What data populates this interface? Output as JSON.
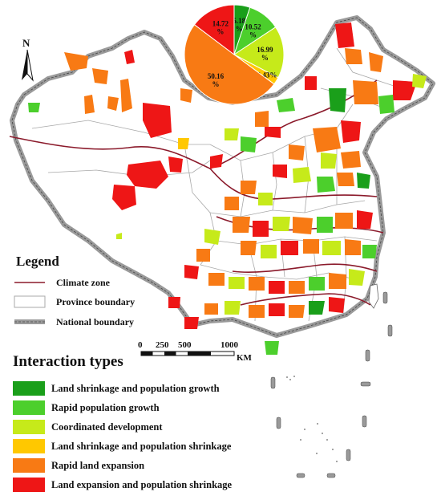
{
  "north_label": "N",
  "legend": {
    "title": "Legend",
    "items": [
      {
        "label": "Climate zone",
        "symbol": "dark-red-line"
      },
      {
        "label": "Province boundary",
        "symbol": "grey-outline-box"
      },
      {
        "label": "National boundary",
        "symbol": "double-grey-line"
      }
    ]
  },
  "scale_bar": {
    "ticks": [
      "0",
      "250",
      "500",
      "1000"
    ],
    "unit": "KM"
  },
  "interaction_types": {
    "title": "Interaction types",
    "items": [
      {
        "label": "Land shrinkage and population growth",
        "color": "#1a9f1a"
      },
      {
        "label": "Rapid population growth",
        "color": "#4ccf2c"
      },
      {
        "label": "Coordinated development",
        "color": "#c6ea1a"
      },
      {
        "label": "Land shrinkage and population shrinkage",
        "color": "#ffc800"
      },
      {
        "label": "Rapid land expansion",
        "color": "#f87a14"
      },
      {
        "label": "Land expansion and population shrinkage",
        "color": "#ee1616"
      }
    ]
  },
  "chart_data": {
    "type": "pie",
    "slices": [
      {
        "label": "5.18%",
        "value": 5.18,
        "color": "#1a9f1a"
      },
      {
        "label": "10.52%",
        "value": 10.52,
        "color": "#4ccf2c"
      },
      {
        "label": "16.99%",
        "value": 16.99,
        "color": "#c6ea1a"
      },
      {
        "label": "2.43%",
        "value": 2.43,
        "color": "#ffc800"
      },
      {
        "label": "50.16%",
        "value": 50.16,
        "color": "#f87a14"
      },
      {
        "label": "14.72%",
        "value": 14.72,
        "color": "#ee1616"
      }
    ]
  },
  "colors": {
    "climate_zone": "#8b1a2b",
    "national_boundary": "#9a9a9a",
    "province_boundary": "#a8a8a8"
  }
}
